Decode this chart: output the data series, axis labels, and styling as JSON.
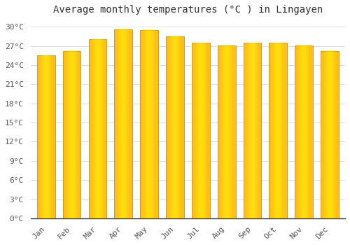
{
  "title": "Average monthly temperatures (°C ) in Lingayen",
  "months": [
    "Jan",
    "Feb",
    "Mar",
    "Apr",
    "May",
    "Jun",
    "Jul",
    "Aug",
    "Sep",
    "Oct",
    "Nov",
    "Dec"
  ],
  "values": [
    25.5,
    26.2,
    28.0,
    29.6,
    29.5,
    28.5,
    27.5,
    27.1,
    27.5,
    27.5,
    27.1,
    26.2
  ],
  "bar_face_color": "#FFA500",
  "bar_edge_color": "#B8860B",
  "background_color": "#FFFFFF",
  "plot_bg_color": "#FFFFFF",
  "grid_color": "#DDDDDD",
  "ylim": [
    0,
    31
  ],
  "yticks": [
    0,
    3,
    6,
    9,
    12,
    15,
    18,
    21,
    24,
    27,
    30
  ],
  "title_fontsize": 10,
  "tick_fontsize": 8,
  "bar_width": 0.7
}
